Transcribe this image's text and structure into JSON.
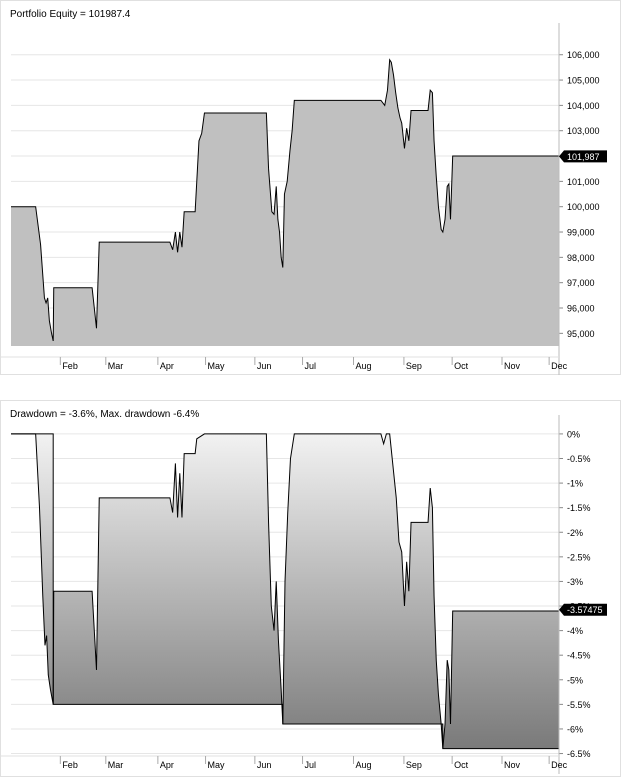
{
  "chart_data": [
    {
      "type": "area",
      "title": "Portfolio Equity = 101987.4",
      "last_value_label": "101,987",
      "ylim": [
        94500,
        106700
      ],
      "yticks": [
        {
          "v": 95000,
          "label": "95,000"
        },
        {
          "v": 96000,
          "label": "96,000"
        },
        {
          "v": 97000,
          "label": "97,000"
        },
        {
          "v": 98000,
          "label": "98,000"
        },
        {
          "v": 99000,
          "label": "99,000"
        },
        {
          "v": 100000,
          "label": "100,000"
        },
        {
          "v": 101000,
          "label": "101,000"
        },
        {
          "v": 102000,
          "label": "102,000"
        },
        {
          "v": 103000,
          "label": "103,000"
        },
        {
          "v": 104000,
          "label": "104,000"
        },
        {
          "v": 105000,
          "label": "105,000"
        },
        {
          "v": 106000,
          "label": "106,000"
        }
      ],
      "xlim": [
        0,
        100
      ],
      "xticks": [
        {
          "x": 9,
          "label": "Feb"
        },
        {
          "x": 17.3,
          "label": "Mar"
        },
        {
          "x": 26.8,
          "label": "Apr"
        },
        {
          "x": 35.5,
          "label": "May"
        },
        {
          "x": 44.5,
          "label": "Jun"
        },
        {
          "x": 53.2,
          "label": "Jul"
        },
        {
          "x": 62.5,
          "label": "Aug"
        },
        {
          "x": 71.7,
          "label": "Sep"
        },
        {
          "x": 80.5,
          "label": "Oct"
        },
        {
          "x": 89.6,
          "label": "Nov"
        },
        {
          "x": 98.2,
          "label": "Dec"
        }
      ],
      "points": [
        [
          0,
          100000
        ],
        [
          4.5,
          100000
        ],
        [
          5.4,
          98500
        ],
        [
          6.1,
          96400
        ],
        [
          6.4,
          96200
        ],
        [
          6.7,
          96400
        ],
        [
          7.0,
          95500
        ],
        [
          7.4,
          95000
        ],
        [
          7.7,
          94700
        ],
        [
          7.8,
          96800
        ],
        [
          14.8,
          96800
        ],
        [
          15.6,
          95200
        ],
        [
          16.1,
          98600
        ],
        [
          29.0,
          98600
        ],
        [
          29.5,
          98300
        ],
        [
          30.0,
          99000
        ],
        [
          30.4,
          98200
        ],
        [
          30.8,
          99000
        ],
        [
          31.2,
          98400
        ],
        [
          31.6,
          99800
        ],
        [
          33.6,
          99800
        ],
        [
          33.9,
          101000
        ],
        [
          34.3,
          102600
        ],
        [
          34.8,
          102900
        ],
        [
          35.3,
          103700
        ],
        [
          46.6,
          103700
        ],
        [
          47.0,
          101500
        ],
        [
          47.6,
          99800
        ],
        [
          48.0,
          99700
        ],
        [
          48.4,
          100800
        ],
        [
          48.7,
          99500
        ],
        [
          49.0,
          99000
        ],
        [
          49.3,
          98000
        ],
        [
          49.6,
          97600
        ],
        [
          49.9,
          100500
        ],
        [
          50.4,
          101000
        ],
        [
          50.9,
          102200
        ],
        [
          51.3,
          103000
        ],
        [
          51.7,
          104200
        ],
        [
          67.5,
          104200
        ],
        [
          68.2,
          104000
        ],
        [
          68.7,
          104600
        ],
        [
          69.1,
          105800
        ],
        [
          69.4,
          105700
        ],
        [
          69.8,
          105200
        ],
        [
          70.2,
          104500
        ],
        [
          70.6,
          103900
        ],
        [
          71.0,
          103500
        ],
        [
          71.3,
          103300
        ],
        [
          71.8,
          102300
        ],
        [
          72.2,
          103100
        ],
        [
          72.6,
          102600
        ],
        [
          73.0,
          103800
        ],
        [
          76.1,
          103800
        ],
        [
          76.5,
          104600
        ],
        [
          76.9,
          104500
        ],
        [
          77.2,
          102600
        ],
        [
          77.6,
          101200
        ],
        [
          78.0,
          100000
        ],
        [
          78.5,
          99100
        ],
        [
          78.8,
          99000
        ],
        [
          79.2,
          99500
        ],
        [
          79.6,
          100800
        ],
        [
          79.9,
          100900
        ],
        [
          80.2,
          99500
        ],
        [
          80.6,
          102000
        ],
        [
          100,
          102000
        ]
      ]
    },
    {
      "type": "area",
      "title": "Drawdown = -3.6%, Max. drawdown -6.4%",
      "last_value_label": "-3.57475",
      "ylim": [
        -6.55,
        0.1
      ],
      "yticks": [
        {
          "v": 0,
          "label": "0%"
        },
        {
          "v": -0.5,
          "label": "-0.5%"
        },
        {
          "v": -1,
          "label": "-1%"
        },
        {
          "v": -1.5,
          "label": "-1.5%"
        },
        {
          "v": -2,
          "label": "-2%"
        },
        {
          "v": -2.5,
          "label": "-2.5%"
        },
        {
          "v": -3,
          "label": "-3%"
        },
        {
          "v": -3.5,
          "label": "-3.5%"
        },
        {
          "v": -4,
          "label": "-4%"
        },
        {
          "v": -4.5,
          "label": "-4.5%"
        },
        {
          "v": -5,
          "label": "-5%"
        },
        {
          "v": -5.5,
          "label": "-5.5%"
        },
        {
          "v": -6,
          "label": "-6%"
        },
        {
          "v": -6.5,
          "label": "-6.5%"
        }
      ],
      "xlim": [
        0,
        100
      ],
      "xticks": [
        {
          "x": 9,
          "label": "Feb"
        },
        {
          "x": 17.3,
          "label": "Mar"
        },
        {
          "x": 26.8,
          "label": "Apr"
        },
        {
          "x": 35.5,
          "label": "May"
        },
        {
          "x": 44.5,
          "label": "Jun"
        },
        {
          "x": 53.2,
          "label": "Jul"
        },
        {
          "x": 62.5,
          "label": "Aug"
        },
        {
          "x": 71.7,
          "label": "Sep"
        },
        {
          "x": 80.5,
          "label": "Oct"
        },
        {
          "x": 89.6,
          "label": "Nov"
        },
        {
          "x": 98.2,
          "label": "Dec"
        }
      ],
      "points": [
        [
          0,
          0
        ],
        [
          4.5,
          0
        ],
        [
          5.2,
          -1.5
        ],
        [
          5.8,
          -3.3
        ],
        [
          6.2,
          -4.3
        ],
        [
          6.5,
          -4.1
        ],
        [
          6.8,
          -4.9
        ],
        [
          7.2,
          -5.2
        ],
        [
          7.7,
          -5.5
        ],
        [
          7.8,
          -3.2
        ],
        [
          14.8,
          -3.2
        ],
        [
          15.6,
          -4.8
        ],
        [
          16.1,
          -1.3
        ],
        [
          29.0,
          -1.3
        ],
        [
          29.5,
          -1.6
        ],
        [
          30.0,
          -0.6
        ],
        [
          30.4,
          -1.7
        ],
        [
          30.8,
          -0.8
        ],
        [
          31.2,
          -1.7
        ],
        [
          31.6,
          -0.4
        ],
        [
          33.6,
          -0.4
        ],
        [
          33.9,
          -0.1
        ],
        [
          35.3,
          0
        ],
        [
          46.6,
          0
        ],
        [
          47.0,
          -1.8
        ],
        [
          47.5,
          -3.5
        ],
        [
          48.0,
          -4.0
        ],
        [
          48.4,
          -3.0
        ],
        [
          48.8,
          -4.2
        ],
        [
          49.3,
          -5.2
        ],
        [
          49.6,
          -5.9
        ],
        [
          50.0,
          -3.0
        ],
        [
          50.5,
          -1.6
        ],
        [
          51.0,
          -0.5
        ],
        [
          51.7,
          0
        ],
        [
          67.5,
          0
        ],
        [
          68.0,
          -0.2
        ],
        [
          68.5,
          0
        ],
        [
          69.1,
          0
        ],
        [
          70.3,
          -1.3
        ],
        [
          70.8,
          -2.2
        ],
        [
          71.3,
          -2.4
        ],
        [
          71.8,
          -3.5
        ],
        [
          72.2,
          -2.6
        ],
        [
          72.6,
          -3.2
        ],
        [
          73.0,
          -1.8
        ],
        [
          76.1,
          -1.8
        ],
        [
          76.5,
          -1.1
        ],
        [
          76.9,
          -1.5
        ],
        [
          77.2,
          -3.3
        ],
        [
          77.6,
          -4.6
        ],
        [
          78.0,
          -5.3
        ],
        [
          78.5,
          -5.9
        ],
        [
          78.8,
          -6.4
        ],
        [
          79.2,
          -5.9
        ],
        [
          79.6,
          -4.6
        ],
        [
          79.9,
          -4.8
        ],
        [
          80.2,
          -5.9
        ],
        [
          80.6,
          -3.6
        ],
        [
          100,
          -3.6
        ]
      ],
      "max_drawdown_line": [
        [
          0,
          0
        ],
        [
          7.7,
          0
        ],
        [
          7.7,
          -5.5
        ],
        [
          49.6,
          -5.5
        ],
        [
          49.6,
          -5.9
        ],
        [
          78.8,
          -5.9
        ],
        [
          78.8,
          -6.4
        ],
        [
          100,
          -6.4
        ]
      ]
    }
  ],
  "colors": {
    "equity_fill": "#c0c0c0",
    "line": "#000000",
    "grid": "#e6e6e6",
    "axis_text": "#000000",
    "marker_bg": "#000000",
    "marker_text": "#ffffff",
    "drawdown_top": "#f2f2f2",
    "drawdown_bottom": "#7a7a7a"
  }
}
